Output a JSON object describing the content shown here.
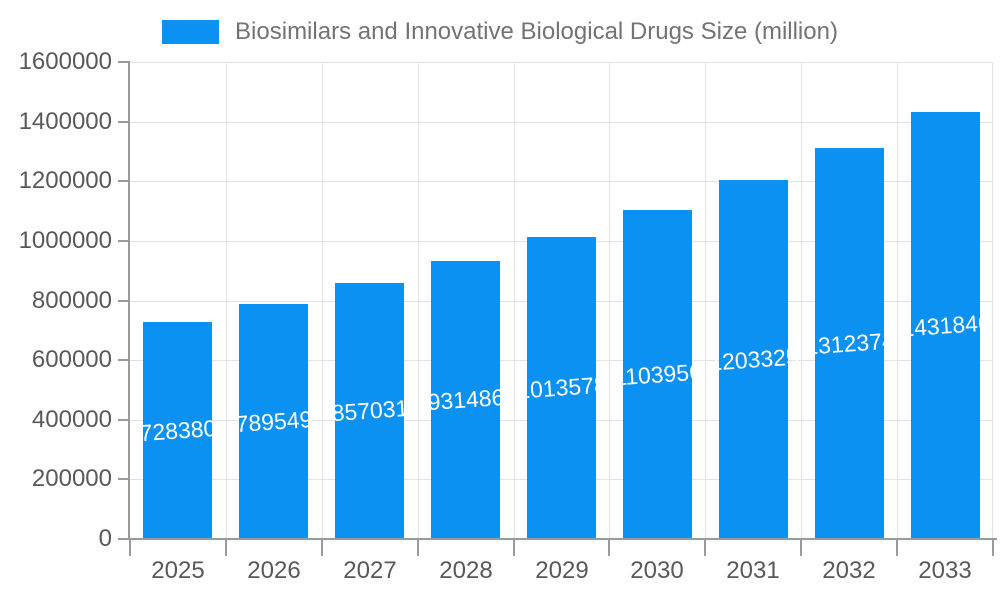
{
  "legend": {
    "label": "Biosimilars and Innovative Biological Drugs Size (million)",
    "swatch_color": "#0a91f2"
  },
  "chart_data": {
    "type": "bar",
    "title": "Biosimilars and Innovative Biological Drugs Size (million)",
    "categories": [
      "2025",
      "2026",
      "2027",
      "2028",
      "2029",
      "2030",
      "2031",
      "2032",
      "2033"
    ],
    "values": [
      728380,
      789549,
      857031,
      931486,
      1013578,
      1103956,
      1203325,
      1312374,
      1431846
    ],
    "series": [
      {
        "name": "Biosimilars and Innovative Biological Drugs Size (million)",
        "values": [
          728380,
          789549,
          857031,
          931486,
          1013578,
          1103956,
          1203325,
          1312374,
          1431846
        ]
      }
    ],
    "xlabel": "",
    "ylabel": "",
    "ylim": [
      0,
      1600000
    ],
    "ytick_step": 200000,
    "ytick_labels": [
      "0",
      "200000",
      "400000",
      "600000",
      "800000",
      "1000000",
      "1200000",
      "1400000",
      "1600000"
    ],
    "grid": true,
    "legend_position": "top",
    "bar_color": "#0a91f2",
    "bar_label_color": "#ffffff",
    "axis_text_color": "#595959",
    "grid_color": "#e3e3e3",
    "axis_line_color": "#9a9a9a"
  }
}
